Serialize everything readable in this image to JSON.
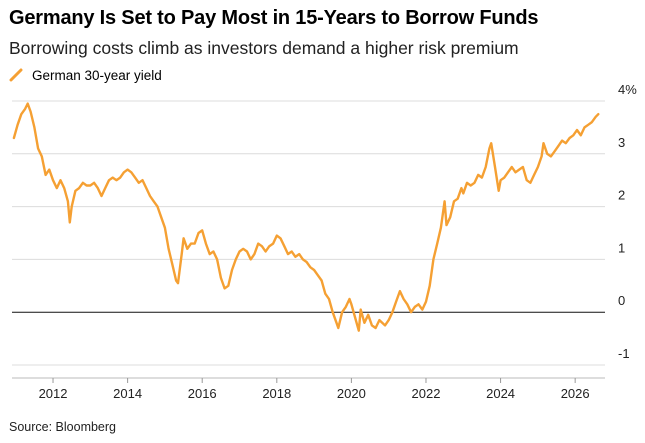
{
  "header": {
    "title": "Germany Is Set to Pay Most in 15-Years to Borrow Funds",
    "subtitle": "Borrowing costs climb as investors demand a higher risk premium"
  },
  "footer": {
    "source": "Source: Bloomberg"
  },
  "colors": {
    "series": "#f5a033",
    "grid": "#dcdcdc",
    "zero_line": "#111111",
    "text": "#222222"
  },
  "chart_data": {
    "type": "line",
    "title": "Germany Is Set to Pay Most in 15-Years to Borrow Funds",
    "subtitle": "Borrowing costs climb as investors demand a higher risk premium",
    "xlabel": "",
    "ylabel": "",
    "xlim": [
      2010.9,
      2026.8
    ],
    "ylim": [
      -1,
      4
    ],
    "x_ticks": [
      2012,
      2014,
      2016,
      2018,
      2020,
      2022,
      2024,
      2026
    ],
    "x_tick_labels": [
      "2012",
      "2014",
      "2016",
      "2018",
      "2020",
      "2022",
      "2024",
      "2026"
    ],
    "y_ticks": [
      4,
      3,
      2,
      1,
      0,
      -1
    ],
    "y_tick_labels": [
      "4%",
      "3",
      "2",
      "1",
      "0",
      "-1"
    ],
    "y_axis_side": "right",
    "grid": true,
    "legend": "top-left",
    "series": [
      {
        "name": "German 30-year yield",
        "color": "#f5a033",
        "points": [
          [
            2010.95,
            3.3
          ],
          [
            2011.05,
            3.55
          ],
          [
            2011.15,
            3.75
          ],
          [
            2011.25,
            3.85
          ],
          [
            2011.32,
            3.95
          ],
          [
            2011.4,
            3.8
          ],
          [
            2011.5,
            3.5
          ],
          [
            2011.6,
            3.1
          ],
          [
            2011.7,
            2.95
          ],
          [
            2011.8,
            2.6
          ],
          [
            2011.9,
            2.7
          ],
          [
            2012.0,
            2.5
          ],
          [
            2012.1,
            2.35
          ],
          [
            2012.2,
            2.5
          ],
          [
            2012.3,
            2.35
          ],
          [
            2012.4,
            2.1
          ],
          [
            2012.45,
            1.7
          ],
          [
            2012.5,
            2.0
          ],
          [
            2012.6,
            2.3
          ],
          [
            2012.7,
            2.35
          ],
          [
            2012.8,
            2.45
          ],
          [
            2012.9,
            2.4
          ],
          [
            2013.0,
            2.4
          ],
          [
            2013.1,
            2.45
          ],
          [
            2013.2,
            2.35
          ],
          [
            2013.3,
            2.2
          ],
          [
            2013.4,
            2.35
          ],
          [
            2013.5,
            2.5
          ],
          [
            2013.6,
            2.55
          ],
          [
            2013.7,
            2.5
          ],
          [
            2013.8,
            2.55
          ],
          [
            2013.9,
            2.65
          ],
          [
            2014.0,
            2.7
          ],
          [
            2014.1,
            2.65
          ],
          [
            2014.2,
            2.55
          ],
          [
            2014.3,
            2.45
          ],
          [
            2014.4,
            2.5
          ],
          [
            2014.5,
            2.35
          ],
          [
            2014.6,
            2.2
          ],
          [
            2014.7,
            2.1
          ],
          [
            2014.8,
            2.0
          ],
          [
            2014.9,
            1.8
          ],
          [
            2015.0,
            1.6
          ],
          [
            2015.1,
            1.2
          ],
          [
            2015.2,
            0.9
          ],
          [
            2015.3,
            0.6
          ],
          [
            2015.35,
            0.55
          ],
          [
            2015.45,
            1.1
          ],
          [
            2015.5,
            1.4
          ],
          [
            2015.6,
            1.2
          ],
          [
            2015.7,
            1.3
          ],
          [
            2015.8,
            1.3
          ],
          [
            2015.9,
            1.5
          ],
          [
            2016.0,
            1.55
          ],
          [
            2016.1,
            1.3
          ],
          [
            2016.2,
            1.1
          ],
          [
            2016.3,
            1.15
          ],
          [
            2016.4,
            1.0
          ],
          [
            2016.5,
            0.65
          ],
          [
            2016.6,
            0.45
          ],
          [
            2016.7,
            0.5
          ],
          [
            2016.8,
            0.8
          ],
          [
            2016.9,
            1.0
          ],
          [
            2017.0,
            1.15
          ],
          [
            2017.1,
            1.2
          ],
          [
            2017.2,
            1.15
          ],
          [
            2017.3,
            1.0
          ],
          [
            2017.4,
            1.1
          ],
          [
            2017.5,
            1.3
          ],
          [
            2017.6,
            1.25
          ],
          [
            2017.7,
            1.15
          ],
          [
            2017.8,
            1.25
          ],
          [
            2017.9,
            1.3
          ],
          [
            2018.0,
            1.45
          ],
          [
            2018.1,
            1.4
          ],
          [
            2018.2,
            1.25
          ],
          [
            2018.3,
            1.1
          ],
          [
            2018.4,
            1.15
          ],
          [
            2018.5,
            1.05
          ],
          [
            2018.6,
            1.1
          ],
          [
            2018.7,
            1.0
          ],
          [
            2018.8,
            0.95
          ],
          [
            2018.9,
            0.85
          ],
          [
            2019.0,
            0.8
          ],
          [
            2019.1,
            0.7
          ],
          [
            2019.2,
            0.6
          ],
          [
            2019.3,
            0.35
          ],
          [
            2019.4,
            0.25
          ],
          [
            2019.5,
            0.0
          ],
          [
            2019.6,
            -0.2
          ],
          [
            2019.65,
            -0.3
          ],
          [
            2019.75,
            0.0
          ],
          [
            2019.85,
            0.1
          ],
          [
            2019.95,
            0.25
          ],
          [
            2020.0,
            0.15
          ],
          [
            2020.1,
            -0.1
          ],
          [
            2020.2,
            -0.35
          ],
          [
            2020.25,
            0.05
          ],
          [
            2020.35,
            -0.2
          ],
          [
            2020.45,
            -0.05
          ],
          [
            2020.55,
            -0.25
          ],
          [
            2020.65,
            -0.3
          ],
          [
            2020.75,
            -0.15
          ],
          [
            2020.9,
            -0.25
          ],
          [
            2021.0,
            -0.15
          ],
          [
            2021.1,
            0.0
          ],
          [
            2021.2,
            0.2
          ],
          [
            2021.3,
            0.4
          ],
          [
            2021.4,
            0.25
          ],
          [
            2021.5,
            0.15
          ],
          [
            2021.6,
            0.0
          ],
          [
            2021.7,
            0.1
          ],
          [
            2021.8,
            0.15
          ],
          [
            2021.9,
            0.05
          ],
          [
            2022.0,
            0.2
          ],
          [
            2022.1,
            0.5
          ],
          [
            2022.2,
            1.0
          ],
          [
            2022.3,
            1.3
          ],
          [
            2022.4,
            1.6
          ],
          [
            2022.5,
            2.1
          ],
          [
            2022.55,
            1.65
          ],
          [
            2022.65,
            1.8
          ],
          [
            2022.75,
            2.1
          ],
          [
            2022.85,
            2.15
          ],
          [
            2022.95,
            2.35
          ],
          [
            2023.0,
            2.25
          ],
          [
            2023.1,
            2.45
          ],
          [
            2023.2,
            2.4
          ],
          [
            2023.3,
            2.45
          ],
          [
            2023.4,
            2.6
          ],
          [
            2023.5,
            2.55
          ],
          [
            2023.6,
            2.75
          ],
          [
            2023.7,
            3.1
          ],
          [
            2023.75,
            3.2
          ],
          [
            2023.85,
            2.75
          ],
          [
            2023.95,
            2.3
          ],
          [
            2024.0,
            2.5
          ],
          [
            2024.1,
            2.55
          ],
          [
            2024.2,
            2.65
          ],
          [
            2024.3,
            2.75
          ],
          [
            2024.4,
            2.65
          ],
          [
            2024.5,
            2.7
          ],
          [
            2024.6,
            2.75
          ],
          [
            2024.7,
            2.5
          ],
          [
            2024.8,
            2.45
          ],
          [
            2024.9,
            2.6
          ],
          [
            2025.0,
            2.75
          ],
          [
            2025.1,
            2.95
          ],
          [
            2025.15,
            3.2
          ],
          [
            2025.25,
            3.0
          ],
          [
            2025.35,
            2.95
          ],
          [
            2025.45,
            3.05
          ],
          [
            2025.55,
            3.15
          ],
          [
            2025.65,
            3.25
          ],
          [
            2025.75,
            3.2
          ],
          [
            2025.85,
            3.3
          ],
          [
            2025.95,
            3.35
          ],
          [
            2026.05,
            3.45
          ],
          [
            2026.15,
            3.35
          ],
          [
            2026.25,
            3.5
          ],
          [
            2026.35,
            3.55
          ],
          [
            2026.45,
            3.6
          ],
          [
            2026.55,
            3.7
          ],
          [
            2026.62,
            3.75
          ]
        ]
      }
    ]
  }
}
